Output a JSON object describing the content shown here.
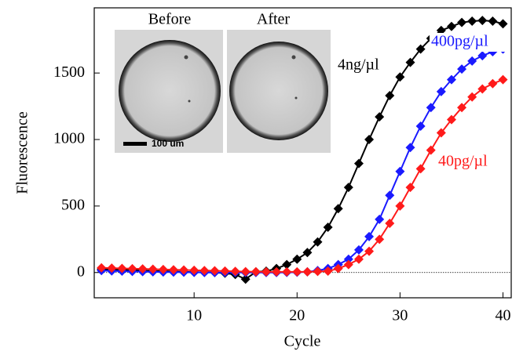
{
  "chart_data": {
    "type": "line",
    "x_label": "Cycle",
    "y_label": "Fluorescence",
    "x": [
      1,
      2,
      3,
      4,
      5,
      6,
      7,
      8,
      9,
      10,
      11,
      12,
      13,
      14,
      15,
      16,
      17,
      18,
      19,
      20,
      21,
      22,
      23,
      24,
      25,
      26,
      27,
      28,
      29,
      30,
      31,
      32,
      33,
      34,
      35,
      36,
      37,
      38,
      39,
      40
    ],
    "series": [
      {
        "name": "4ng/µl",
        "color": "#000000",
        "values": [
          25,
          22,
          20,
          18,
          15,
          12,
          10,
          8,
          5,
          3,
          2,
          0,
          -5,
          -15,
          -50,
          5,
          10,
          30,
          60,
          100,
          150,
          230,
          340,
          480,
          640,
          820,
          1000,
          1170,
          1330,
          1470,
          1580,
          1680,
          1760,
          1820,
          1850,
          1880,
          1890,
          1895,
          1890,
          1870
        ]
      },
      {
        "name": "400pg/µl",
        "color": "#1a1aff",
        "values": [
          15,
          12,
          10,
          8,
          7,
          5,
          4,
          3,
          2,
          1,
          0,
          0,
          0,
          0,
          0,
          0,
          0,
          0,
          1,
          2,
          5,
          15,
          30,
          60,
          100,
          170,
          270,
          400,
          580,
          760,
          940,
          1100,
          1240,
          1360,
          1450,
          1530,
          1590,
          1630,
          1660,
          1680
        ]
      },
      {
        "name": "40pg/µl",
        "color": "#ff1a1a",
        "values": [
          35,
          33,
          31,
          29,
          27,
          25,
          23,
          21,
          19,
          17,
          15,
          13,
          11,
          9,
          7,
          6,
          5,
          5,
          5,
          5,
          5,
          8,
          10,
          30,
          60,
          100,
          160,
          250,
          370,
          500,
          640,
          780,
          920,
          1050,
          1150,
          1240,
          1320,
          1380,
          1420,
          1450
        ]
      }
    ],
    "xlim": [
      0.3,
      40.8
    ],
    "xticks": [
      10,
      20,
      30,
      40
    ],
    "ylim": [
      -190,
      1990
    ],
    "yticks": [
      0,
      500,
      1000,
      1500
    ],
    "inset": {
      "labels": [
        "Before",
        "After"
      ],
      "scale_bar": "100 um"
    }
  }
}
